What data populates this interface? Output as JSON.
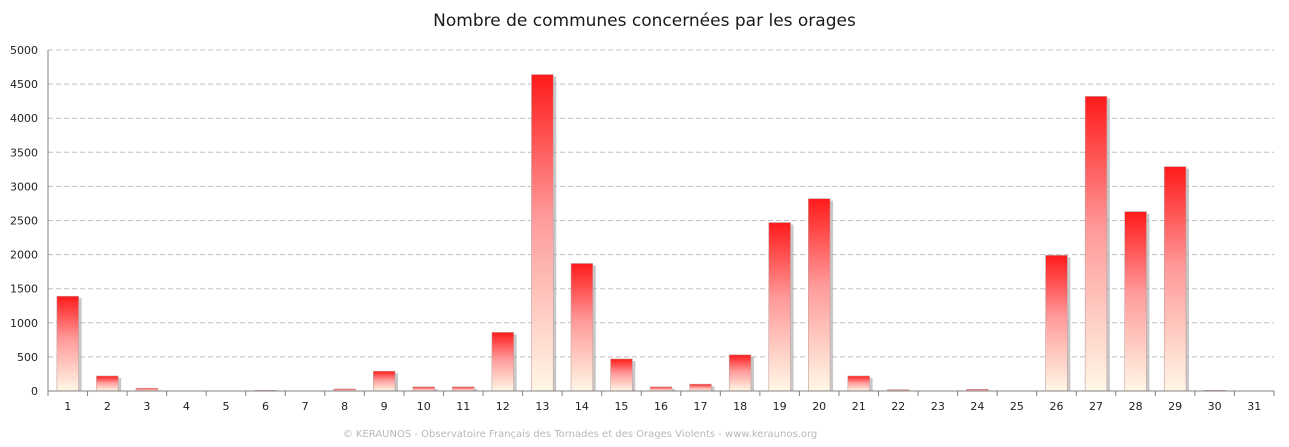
{
  "chart_data": {
    "type": "bar",
    "title": "Nombre de communes concernées par les orages",
    "xlabel": "",
    "ylabel": "",
    "ylim": [
      0,
      5000
    ],
    "yticks": [
      0,
      500,
      1000,
      1500,
      2000,
      2500,
      3000,
      3500,
      4000,
      4500,
      5000
    ],
    "grid": true,
    "categories": [
      "1",
      "2",
      "3",
      "4",
      "5",
      "6",
      "7",
      "8",
      "9",
      "10",
      "11",
      "12",
      "13",
      "14",
      "15",
      "16",
      "17",
      "18",
      "19",
      "20",
      "21",
      "22",
      "23",
      "24",
      "25",
      "26",
      "27",
      "28",
      "29",
      "30",
      "31"
    ],
    "values": [
      1390,
      220,
      40,
      0,
      0,
      10,
      0,
      30,
      290,
      60,
      60,
      860,
      4640,
      1870,
      470,
      60,
      100,
      530,
      2470,
      2820,
      220,
      20,
      0,
      25,
      0,
      1990,
      4320,
      2630,
      3290,
      10,
      0
    ],
    "colors": {
      "bar_top": "#ff1a1a",
      "bar_bottom": "#fff7e6",
      "grid": "#bfbfbf",
      "axis": "#808080"
    }
  },
  "footer": "© KERAUNOS - Observatoire Français des Tornades et des Orages Violents - www.keraunos.org"
}
